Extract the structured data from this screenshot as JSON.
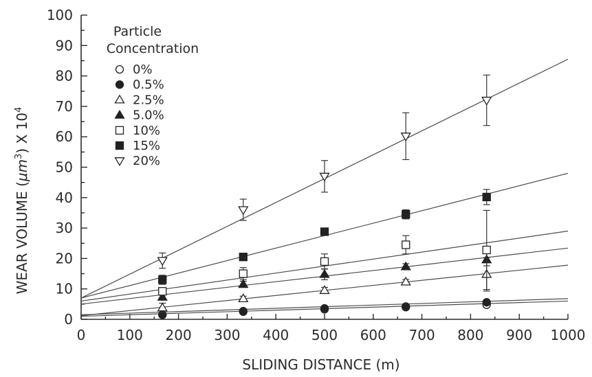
{
  "chart_data": {
    "type": "scatter",
    "xlabel": "SLIDING DISTANCE (m)",
    "ylabel_main": "WEAR VOLUME (",
    "ylabel_mu": "μm",
    "ylabel_sup": "3",
    "ylabel_end": ") X 10",
    "ylabel_sup2": "4",
    "xlim": [
      0,
      1000
    ],
    "ylim": [
      0,
      100
    ],
    "x_ticks": [
      0,
      100,
      200,
      300,
      400,
      500,
      600,
      700,
      800,
      900,
      1000
    ],
    "y_ticks": [
      0,
      10,
      20,
      30,
      40,
      50,
      60,
      70,
      80,
      90,
      100
    ],
    "legend_title_line1": "Particle",
    "legend_title_line2": "Concentration",
    "legend_position": "top-left",
    "series": [
      {
        "name": "0%",
        "marker": "circle-open",
        "x": [
          167,
          333,
          500,
          667,
          833
        ],
        "y": [
          1.5,
          2.5,
          3.3,
          4.0,
          4.8
        ],
        "err": [
          0,
          0,
          0,
          0,
          0
        ],
        "fit": [
          1.0,
          6.0
        ]
      },
      {
        "name": "0.5%",
        "marker": "circle-filled",
        "x": [
          167,
          333,
          500,
          667,
          833
        ],
        "y": [
          1.5,
          2.7,
          3.6,
          4.2,
          5.6
        ],
        "err": [
          0.6,
          0.4,
          0.5,
          0.6,
          0.7
        ],
        "fit": [
          1.5,
          6.8
        ]
      },
      {
        "name": "2.5%",
        "marker": "triangle-open",
        "x": [
          167,
          333,
          500,
          667,
          833
        ],
        "y": [
          3.8,
          6.8,
          9.5,
          12.3,
          14.8
        ],
        "err": [
          1.5,
          0.8,
          1.0,
          0.8,
          5.5
        ],
        "fit": [
          1.2,
          17.8
        ]
      },
      {
        "name": "5.0%",
        "marker": "triangle-filled",
        "x": [
          167,
          333,
          500,
          667,
          833
        ],
        "y": [
          7.3,
          11.5,
          14.8,
          17.3,
          19.6
        ],
        "err": [
          1.0,
          1.0,
          1.8,
          1.0,
          2.0
        ],
        "fit": [
          5.0,
          23.4
        ]
      },
      {
        "name": "10%",
        "marker": "square-open",
        "x": [
          167,
          333,
          500,
          667,
          833
        ],
        "y": [
          9.2,
          15.0,
          19.0,
          24.5,
          22.8
        ],
        "err": [
          1.2,
          2.0,
          2.5,
          3.0,
          13.0
        ],
        "fit": [
          6.0,
          29.0
        ]
      },
      {
        "name": "15%",
        "marker": "square-filled",
        "x": [
          167,
          333,
          500,
          667,
          833
        ],
        "y": [
          13.0,
          20.5,
          28.8,
          34.5,
          40.2
        ],
        "err": [
          1.5,
          1.0,
          1.0,
          1.5,
          2.5
        ],
        "fit": [
          7.0,
          48.0
        ]
      },
      {
        "name": "20%",
        "marker": "triangle-down-open",
        "x": [
          167,
          333,
          500,
          667,
          833
        ],
        "y": [
          19.3,
          36.0,
          47.0,
          60.2,
          72.0
        ],
        "err": [
          2.5,
          3.5,
          5.2,
          7.7,
          8.3
        ],
        "fit": [
          7.0,
          85.5
        ]
      }
    ]
  }
}
